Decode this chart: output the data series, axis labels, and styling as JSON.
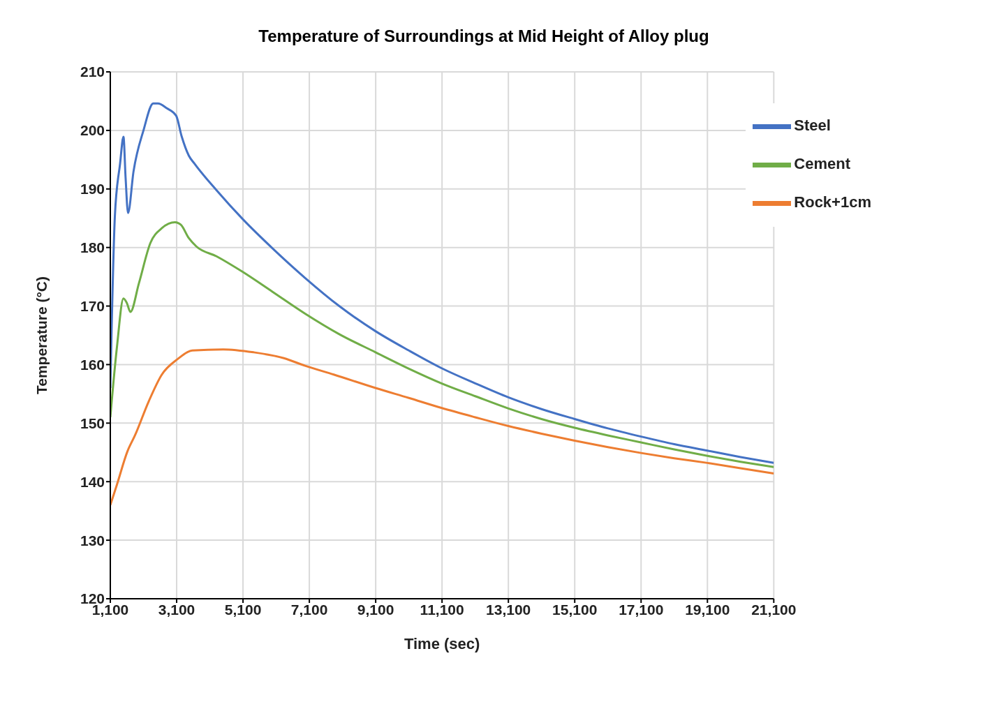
{
  "chart_data": {
    "type": "line",
    "title": "Temperature of Surroundings at Mid Height of Alloy plug",
    "xlabel": "Time (sec)",
    "ylabel": "Temperature (°C)",
    "xlim": [
      1100,
      21100
    ],
    "xticks": [
      {
        "value": 1100,
        "label": "1,100"
      },
      {
        "value": 3100,
        "label": "3,100"
      },
      {
        "value": 5100,
        "label": "5,100"
      },
      {
        "value": 7100,
        "label": "7,100"
      },
      {
        "value": 9100,
        "label": "9,100"
      },
      {
        "value": 11100,
        "label": "11,100"
      },
      {
        "value": 13100,
        "label": "13,100"
      },
      {
        "value": 15100,
        "label": "15,100"
      },
      {
        "value": 17100,
        "label": "17,100"
      },
      {
        "value": 19100,
        "label": "19,100"
      },
      {
        "value": 21100,
        "label": "21,100"
      }
    ],
    "ylim": [
      120,
      210
    ],
    "yticks": [
      120,
      130,
      140,
      150,
      160,
      170,
      180,
      190,
      200,
      210
    ],
    "grid": true,
    "legend": "top right",
    "marker": "none",
    "line_style": "solid",
    "series": [
      {
        "name": "Steel",
        "color": "#4472c4",
        "x": [
          1100,
          1238,
          1394,
          1497,
          1560,
          1635,
          1800,
          2100,
          2395,
          2535,
          2800,
          3086,
          3250,
          3466,
          3640,
          4300,
          5100,
          6000,
          6972,
          8000,
          9096,
          10100,
          11082,
          12100,
          13100,
          14100,
          15100,
          16100,
          17100,
          18100,
          19100,
          20100,
          21100
        ],
        "values": [
          156,
          185.4,
          194.3,
          198.9,
          192,
          185.9,
          193,
          200,
          204.6,
          204.6,
          203.8,
          202.5,
          199,
          195.7,
          194.3,
          189.8,
          184.8,
          179.8,
          174.8,
          170,
          165.7,
          162.4,
          159.4,
          156.8,
          154.4,
          152.4,
          150.7,
          149.1,
          147.7,
          146.4,
          145.3,
          144.2,
          143.2
        ]
      },
      {
        "name": "Cement",
        "color": "#70ad47",
        "x": [
          1100,
          1300,
          1497,
          1600,
          1705,
          1963,
          2310,
          2654,
          3051,
          3224,
          3466,
          3690,
          4300,
          5072,
          6000,
          6972,
          8000,
          9096,
          10100,
          11082,
          12100,
          13100,
          14100,
          15100,
          16100,
          17100,
          18100,
          19100,
          20100,
          21100
        ],
        "values": [
          151,
          163,
          171.3,
          170.5,
          169,
          173.9,
          180.8,
          183.3,
          184.3,
          183.9,
          181.6,
          180.2,
          178.5,
          175.9,
          172.4,
          168.7,
          165.2,
          162.1,
          159.3,
          156.8,
          154.6,
          152.5,
          150.7,
          149.2,
          147.9,
          146.7,
          145.5,
          144.4,
          143.4,
          142.5
        ]
      },
      {
        "name": "Rock+1cm",
        "color": "#ed7d31",
        "x": [
          1100,
          1300,
          1618,
          1843,
          2257,
          2654,
          3121,
          3570,
          4502,
          5418,
          6333,
          6972,
          7835,
          9096,
          10100,
          11082,
          12100,
          13100,
          14100,
          15100,
          16100,
          17100,
          18100,
          19100,
          20100,
          21100
        ],
        "values": [
          136,
          139.5,
          145.2,
          147.9,
          153.7,
          158.3,
          160.9,
          162.4,
          162.6,
          162.1,
          161.1,
          159.8,
          158.3,
          156,
          154.3,
          152.6,
          151,
          149.5,
          148.2,
          147,
          145.9,
          144.9,
          144,
          143.2,
          142.3,
          141.4
        ]
      }
    ]
  }
}
